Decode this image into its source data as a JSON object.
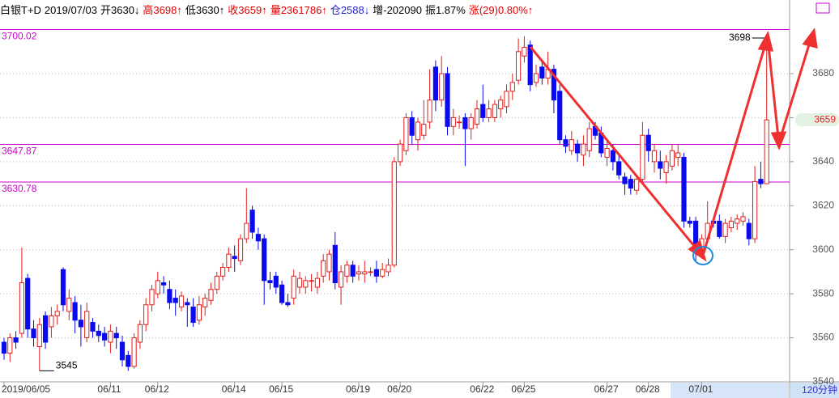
{
  "header": {
    "items": [
      {
        "text": "白银T+D",
        "color": "#000000"
      },
      {
        "text": "2019/07/03",
        "color": "#000000"
      },
      {
        "text": "开3630↓",
        "color": "#000000"
      },
      {
        "text": "高3698↑",
        "color": "#e00000"
      },
      {
        "text": "低3630↑",
        "color": "#000000"
      },
      {
        "text": "收3659↑",
        "color": "#e00000"
      },
      {
        "text": "量2361786↑",
        "color": "#e00000"
      },
      {
        "text": "仓2588↓",
        "color": "#2020cc"
      },
      {
        "text": "增-202090",
        "color": "#000000"
      },
      {
        "text": "振1.87%",
        "color": "#000000"
      },
      {
        "text": "涨(29)0.80%↑",
        "color": "#e00000"
      }
    ]
  },
  "chart_data": {
    "type": "candlestick",
    "period": "120分钟",
    "up_color": "#e02020",
    "down_color": "#0a0aee",
    "level_color": "#cc00cc",
    "ylim": [
      3540,
      3705
    ],
    "yticks": [
      3540,
      3560,
      3580,
      3600,
      3620,
      3640,
      3660,
      3680
    ],
    "grid": true,
    "levels": [
      3700.02,
      3647.87,
      3630.78
    ],
    "categories": [
      "2019/06/05",
      null,
      null,
      null,
      null,
      null,
      null,
      null,
      null,
      null,
      null,
      null,
      null,
      null,
      null,
      null,
      null,
      null,
      "06/11",
      null,
      null,
      null,
      null,
      null,
      null,
      null,
      "06/12",
      null,
      null,
      null,
      null,
      null,
      null,
      null,
      null,
      null,
      null,
      null,
      null,
      "06/14",
      null,
      null,
      null,
      null,
      null,
      null,
      null,
      "06/15",
      null,
      null,
      null,
      null,
      null,
      null,
      null,
      null,
      null,
      null,
      null,
      null,
      "06/19",
      null,
      null,
      null,
      null,
      null,
      null,
      "06/20",
      null,
      null,
      null,
      null,
      null,
      null,
      null,
      null,
      null,
      null,
      null,
      null,
      null,
      "06/22",
      null,
      null,
      null,
      null,
      null,
      null,
      "06/25",
      null,
      null,
      null,
      null,
      null,
      null,
      null,
      null,
      null,
      null,
      null,
      null,
      null,
      "06/27",
      null,
      null,
      null,
      null,
      null,
      null,
      "06/28",
      null,
      null,
      null,
      null,
      null,
      null,
      null,
      null,
      "07/01",
      null,
      null,
      null,
      null,
      null,
      null,
      null,
      null,
      null,
      null,
      null
    ],
    "open": [
      3558,
      3553,
      3560,
      3562,
      3587,
      3564,
      3556,
      3570,
      3565,
      3570,
      3591,
      3572,
      3576,
      3568,
      3560,
      3567,
      3563,
      3562,
      3558,
      3562,
      3558,
      3552,
      3547,
      3558,
      3566,
      3575,
      3580,
      3585,
      3582,
      3578,
      3574,
      3576,
      3574,
      3568,
      3574,
      3577,
      3582,
      3588,
      3592,
      3597,
      3595,
      3605,
      3618,
      3607,
      3605,
      3586,
      3588,
      3584,
      3576,
      3578,
      3583,
      3583,
      3586,
      3583,
      3588,
      3590,
      3602,
      3583,
      3588,
      3593,
      3589,
      3589,
      3590,
      3591,
      3588,
      3590,
      3593,
      3640,
      3645,
      3660,
      3650,
      3652,
      3658,
      3683,
      3668,
      3680,
      3656,
      3658,
      3660,
      3655,
      3657,
      3666,
      3660,
      3660,
      3664,
      3665,
      3672,
      3677,
      3688,
      3693,
      3676,
      3683,
      3678,
      3682,
      3672,
      3650,
      3645,
      3648,
      3643,
      3645,
      3656,
      3653,
      3642,
      3645,
      3640,
      3633,
      3632,
      3627,
      3632,
      3652,
      3640,
      3640,
      3635,
      3638,
      3642,
      3642,
      3613,
      3613,
      3600,
      3605,
      3613,
      3613,
      3606,
      3610,
      3612,
      3613,
      3612,
      3605,
      3632,
      3630
    ],
    "high": [
      3560,
      3562,
      3563,
      3601,
      3589,
      3568,
      3569,
      3572,
      3574,
      3575,
      3592,
      3582,
      3579,
      3575,
      3576,
      3569,
      3566,
      3565,
      3566,
      3565,
      3561,
      3554,
      3562,
      3568,
      3578,
      3584,
      3590,
      3588,
      3586,
      3582,
      3581,
      3578,
      3578,
      3579,
      3580,
      3585,
      3590,
      3594,
      3601,
      3602,
      3607,
      3628,
      3620,
      3610,
      3607,
      3590,
      3590,
      3586,
      3580,
      3591,
      3590,
      3588,
      3589,
      3590,
      3598,
      3600,
      3608,
      3593,
      3595,
      3595,
      3593,
      3595,
      3592,
      3595,
      3594,
      3596,
      3642,
      3650,
      3662,
      3663,
      3660,
      3668,
      3682,
      3686,
      3688,
      3683,
      3664,
      3661,
      3662,
      3662,
      3668,
      3675,
      3668,
      3668,
      3670,
      3675,
      3680,
      3696,
      3697,
      3695,
      3684,
      3686,
      3690,
      3684,
      3675,
      3652,
      3654,
      3650,
      3652,
      3658,
      3658,
      3656,
      3650,
      3648,
      3643,
      3635,
      3634,
      3634,
      3658,
      3655,
      3648,
      3645,
      3643,
      3648,
      3648,
      3644,
      3615,
      3615,
      3607,
      3622,
      3615,
      3616,
      3614,
      3615,
      3616,
      3617,
      3614,
      3638,
      3640,
      3698
    ],
    "low": [
      3550,
      3549,
      3555,
      3560,
      3560,
      3556,
      3545,
      3555,
      3560,
      3566,
      3572,
      3568,
      3562,
      3556,
      3558,
      3560,
      3558,
      3556,
      3553,
      3555,
      3547,
      3545,
      3546,
      3555,
      3563,
      3572,
      3578,
      3580,
      3573,
      3570,
      3572,
      3565,
      3565,
      3566,
      3570,
      3575,
      3580,
      3586,
      3590,
      3590,
      3593,
      3603,
      3605,
      3600,
      3575,
      3582,
      3580,
      3575,
      3574,
      3575,
      3580,
      3580,
      3581,
      3580,
      3585,
      3586,
      3582,
      3575,
      3585,
      3585,
      3586,
      3585,
      3588,
      3585,
      3587,
      3588,
      3592,
      3638,
      3643,
      3648,
      3645,
      3650,
      3655,
      3663,
      3665,
      3652,
      3652,
      3655,
      3638,
      3650,
      3655,
      3658,
      3658,
      3658,
      3660,
      3662,
      3668,
      3675,
      3685,
      3672,
      3674,
      3675,
      3675,
      3662,
      3648,
      3644,
      3643,
      3640,
      3638,
      3642,
      3650,
      3642,
      3638,
      3636,
      3632,
      3625,
      3625,
      3625,
      3630,
      3640,
      3635,
      3632,
      3630,
      3636,
      3638,
      3610,
      3610,
      3595,
      3596,
      3603,
      3610,
      3605,
      3603,
      3608,
      3609,
      3611,
      3602,
      3603,
      3628,
      3630
    ],
    "close": [
      3553,
      3560,
      3558,
      3585,
      3564,
      3560,
      3566,
      3558,
      3570,
      3572,
      3575,
      3578,
      3568,
      3565,
      3572,
      3563,
      3561,
      3559,
      3563,
      3560,
      3550,
      3547,
      3560,
      3566,
      3575,
      3582,
      3586,
      3584,
      3576,
      3576,
      3579,
      3575,
      3567,
      3575,
      3578,
      3582,
      3588,
      3592,
      3598,
      3596,
      3605,
      3612,
      3608,
      3604,
      3586,
      3585,
      3583,
      3576,
      3575,
      3588,
      3587,
      3586,
      3586,
      3587,
      3595,
      3598,
      3585,
      3590,
      3593,
      3588,
      3590,
      3590,
      3590,
      3588,
      3591,
      3593,
      3640,
      3648,
      3660,
      3652,
      3658,
      3657,
      3668,
      3668,
      3680,
      3656,
      3660,
      3658,
      3655,
      3660,
      3664,
      3660,
      3664,
      3666,
      3668,
      3672,
      3676,
      3690,
      3692,
      3675,
      3680,
      3678,
      3682,
      3668,
      3650,
      3647,
      3650,
      3644,
      3648,
      3655,
      3652,
      3644,
      3646,
      3640,
      3634,
      3630,
      3628,
      3632,
      3652,
      3645,
      3645,
      3637,
      3640,
      3645,
      3644,
      3613,
      3612,
      3602,
      3605,
      3612,
      3612,
      3606,
      3612,
      3613,
      3614,
      3615,
      3605,
      3631,
      3630,
      3659
    ]
  }
}
